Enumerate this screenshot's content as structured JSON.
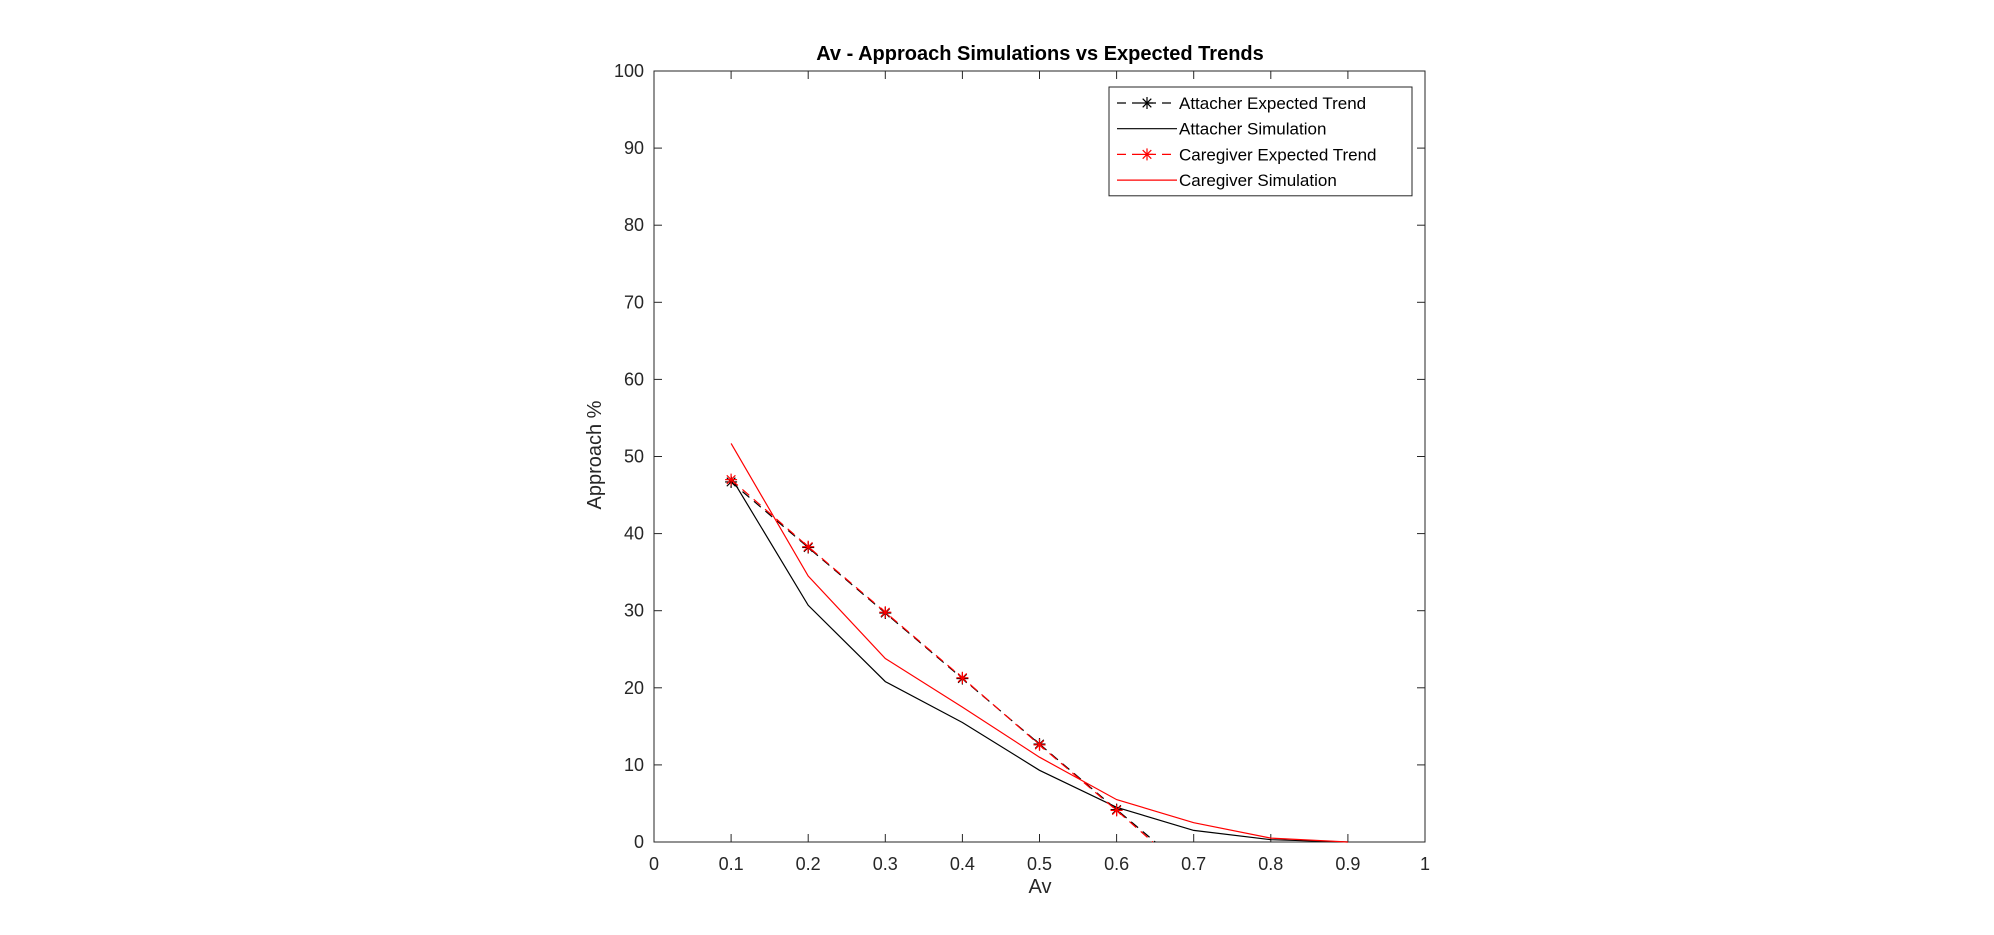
{
  "chart_data": {
    "type": "line",
    "title": "Av - Approach Simulations vs Expected Trends",
    "xlabel": "Av",
    "ylabel": "Approach %",
    "xlim": [
      0,
      1
    ],
    "ylim": [
      0,
      100
    ],
    "xticks": [
      0,
      0.1,
      0.2,
      0.3,
      0.4,
      0.5,
      0.6,
      0.7,
      0.8,
      0.9,
      1
    ],
    "yticks": [
      0,
      10,
      20,
      30,
      40,
      50,
      60,
      70,
      80,
      90,
      100
    ],
    "xtick_labels": [
      "0",
      "0.1",
      "0.2",
      "0.3",
      "0.4",
      "0.5",
      "0.6",
      "0.7",
      "0.8",
      "0.9",
      "1"
    ],
    "ytick_labels": [
      "0",
      "10",
      "20",
      "30",
      "40",
      "50",
      "60",
      "70",
      "80",
      "90",
      "100"
    ],
    "grid": false,
    "legend_position": "top-right",
    "series": [
      {
        "name": "Attacher Expected Trend",
        "color": "#000000",
        "style": "dashed",
        "marker": "asterisk",
        "x": [
          0.1,
          0.2,
          0.3,
          0.4,
          0.5,
          0.6,
          0.65
        ],
        "y": [
          46.7,
          38.2,
          29.7,
          21.2,
          12.7,
          4.2,
          0
        ],
        "marker_points": 6
      },
      {
        "name": "Attacher Simulation",
        "color": "#000000",
        "style": "solid",
        "marker": "none",
        "x": [
          0.1,
          0.2,
          0.3,
          0.4,
          0.5,
          0.6,
          0.7,
          0.8,
          0.9
        ],
        "y": [
          47.3,
          30.7,
          20.8,
          15.5,
          9.3,
          4.5,
          1.5,
          0.3,
          0
        ]
      },
      {
        "name": "Caregiver Expected Trend",
        "color": "#ff0000",
        "style": "dashed",
        "marker": "asterisk",
        "x": [
          0.1,
          0.2,
          0.3,
          0.4,
          0.5,
          0.6,
          0.647
        ],
        "y": [
          47.0,
          38.3,
          29.8,
          21.3,
          12.6,
          4.1,
          0
        ],
        "marker_points": 6
      },
      {
        "name": "Caregiver Simulation",
        "color": "#ff0000",
        "style": "solid",
        "marker": "none",
        "x": [
          0.1,
          0.2,
          0.3,
          0.4,
          0.5,
          0.6,
          0.7,
          0.8,
          0.9
        ],
        "y": [
          51.7,
          34.5,
          23.8,
          17.5,
          11.0,
          5.5,
          2.5,
          0.5,
          0
        ]
      }
    ]
  }
}
